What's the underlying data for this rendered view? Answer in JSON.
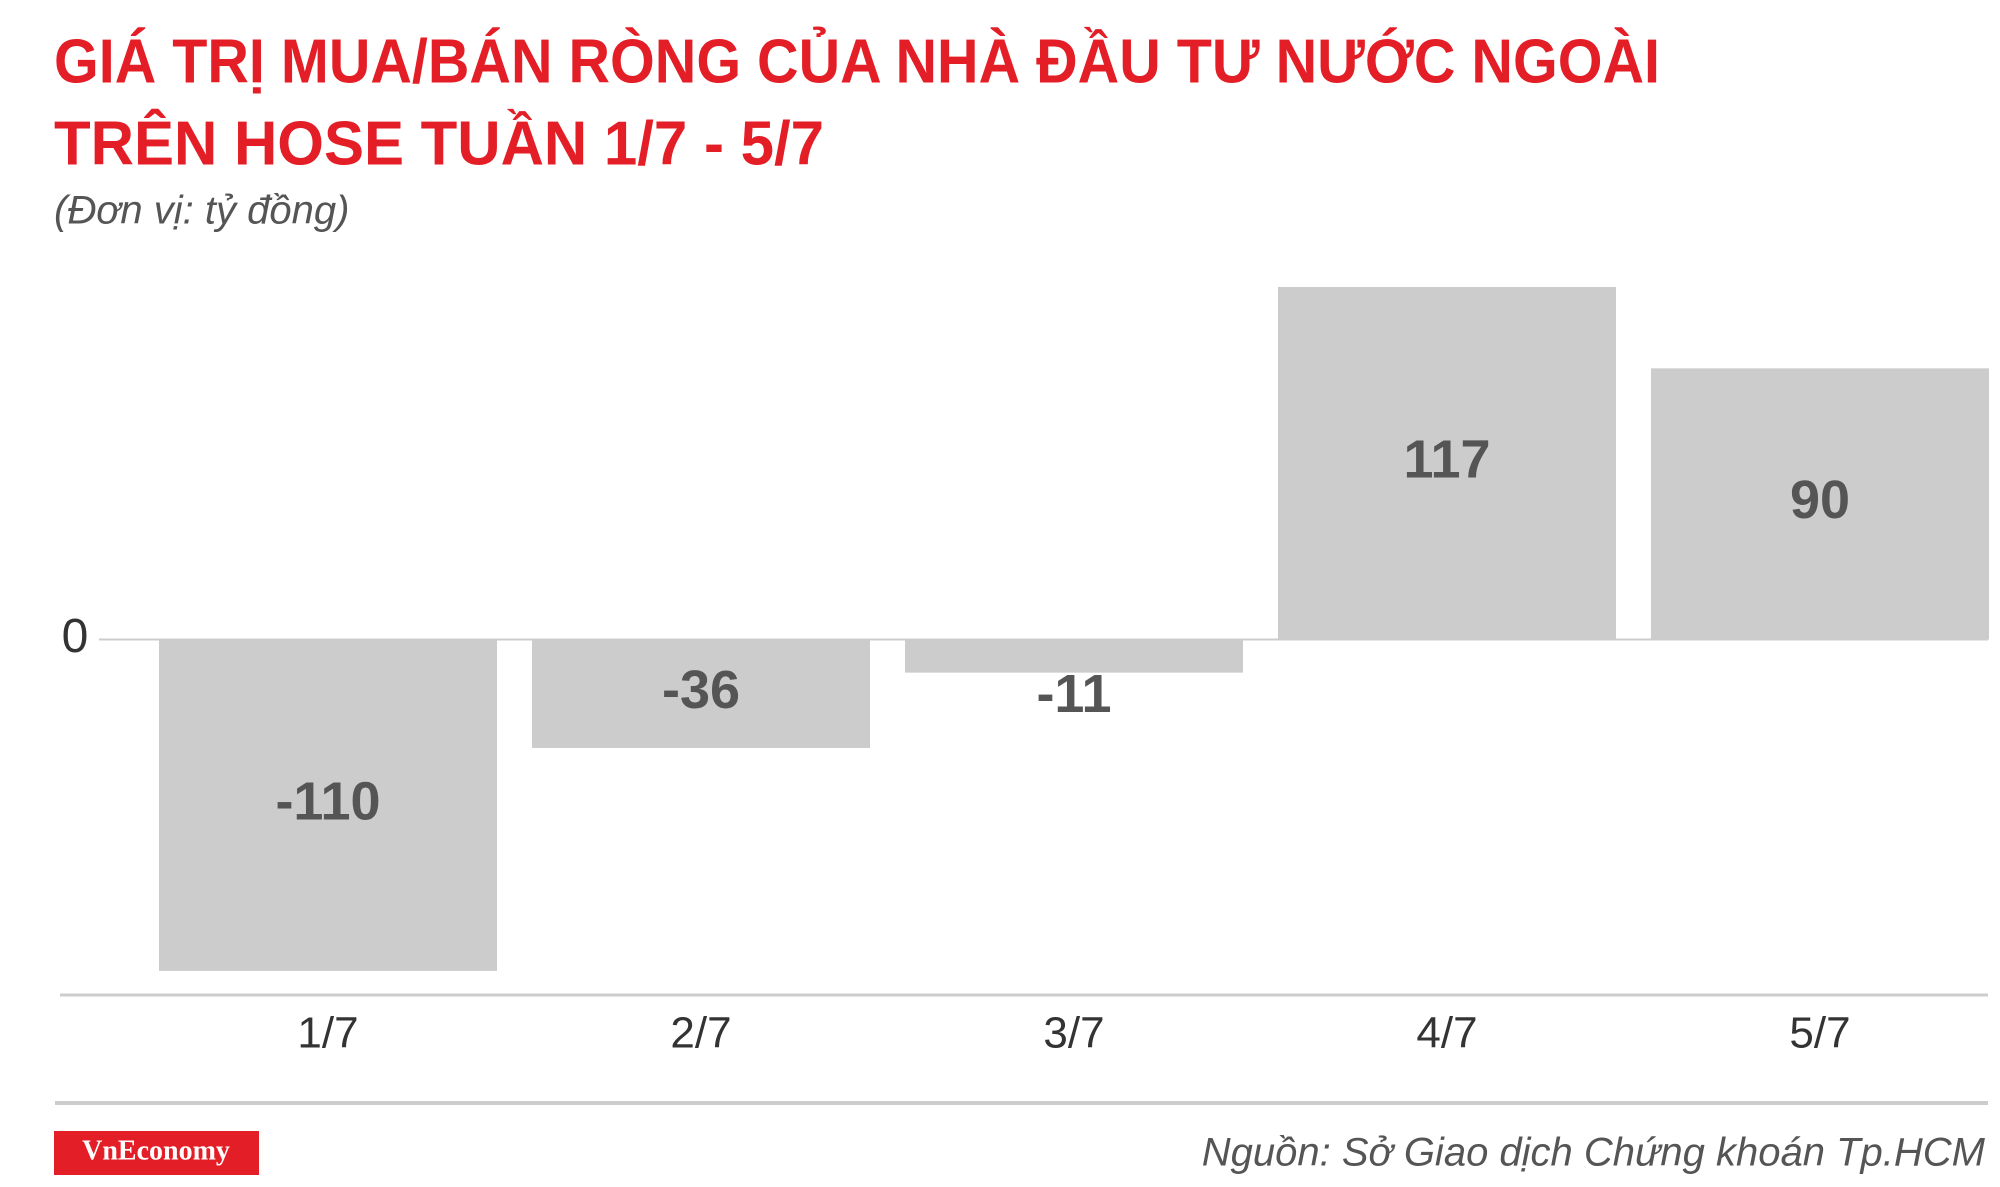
{
  "chart_data": {
    "type": "bar",
    "title_lines": [
      "GIÁ TRỊ MUA/BÁN RÒNG CỦA NHÀ ĐẦU TƯ NƯỚC NGOÀI",
      "TRÊN HOSE TUẦN 1/7 - 5/7"
    ],
    "subtitle": "(Đơn vị: tỷ đồng)",
    "categories": [
      "1/7",
      "2/7",
      "3/7",
      "4/7",
      "5/7"
    ],
    "values": [
      -110,
      -36,
      -11,
      117,
      90
    ],
    "color": "#cccccc",
    "ylim": [
      -118,
      117
    ],
    "yticks": [
      0
    ],
    "grid": true,
    "source": "Nguồn: Sở Giao dịch Chứng khoán Tp.HCM",
    "logo": "VnEconomy"
  }
}
